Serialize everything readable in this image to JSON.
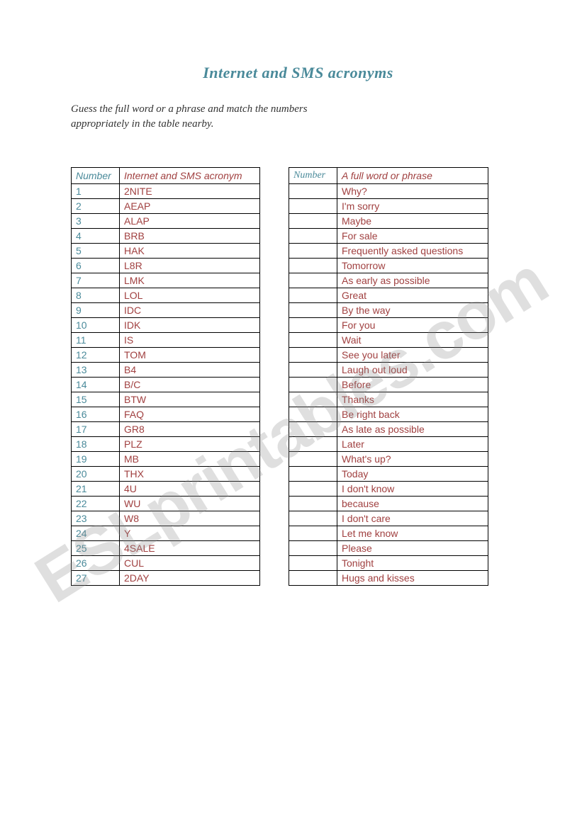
{
  "title": "Internet and SMS acronyms",
  "instructions": "Guess the full word or a phrase and match the numbers appropriately in the table nearby.",
  "watermark": "ESLprintables.com",
  "tableLeft": {
    "header": {
      "col1": "Number",
      "col2": "Internet and SMS acronym"
    },
    "rows": [
      {
        "num": "1",
        "acr": "2NITE"
      },
      {
        "num": "2",
        "acr": "AEAP"
      },
      {
        "num": "3",
        "acr": "ALAP"
      },
      {
        "num": "4",
        "acr": "BRB"
      },
      {
        "num": "5",
        "acr": "HAK"
      },
      {
        "num": "6",
        "acr": "L8R"
      },
      {
        "num": "7",
        "acr": "LMK"
      },
      {
        "num": "8",
        "acr": "LOL"
      },
      {
        "num": "9",
        "acr": "IDC"
      },
      {
        "num": "10",
        "acr": "IDK"
      },
      {
        "num": "11",
        "acr": "IS"
      },
      {
        "num": "12",
        "acr": "TOM"
      },
      {
        "num": "13",
        "acr": "B4"
      },
      {
        "num": "14",
        "acr": "B/C"
      },
      {
        "num": "15",
        "acr": "BTW"
      },
      {
        "num": "16",
        "acr": "FAQ"
      },
      {
        "num": "17",
        "acr": "GR8"
      },
      {
        "num": "18",
        "acr": "PLZ"
      },
      {
        "num": "19",
        "acr": "MB"
      },
      {
        "num": "20",
        "acr": "THX"
      },
      {
        "num": "21",
        "acr": "4U"
      },
      {
        "num": "22",
        "acr": "WU"
      },
      {
        "num": "23",
        "acr": "W8"
      },
      {
        "num": "24",
        "acr": "Y"
      },
      {
        "num": "25",
        "acr": "4SALE"
      },
      {
        "num": "26",
        "acr": "CUL"
      },
      {
        "num": "27",
        "acr": "2DAY"
      }
    ]
  },
  "tableRight": {
    "header": {
      "col1": "Number",
      "col2": "A full  word or phrase"
    },
    "rows": [
      {
        "num": "",
        "phrase": "Why?"
      },
      {
        "num": "",
        "phrase": "I'm sorry"
      },
      {
        "num": "",
        "phrase": "Maybe"
      },
      {
        "num": "",
        "phrase": "For sale"
      },
      {
        "num": "",
        "phrase": "Frequently asked questions"
      },
      {
        "num": "",
        "phrase": "Tomorrow"
      },
      {
        "num": "",
        "phrase": "As early as possible"
      },
      {
        "num": "",
        "phrase": "Great"
      },
      {
        "num": "",
        "phrase": "By the way"
      },
      {
        "num": "",
        "phrase": "For you"
      },
      {
        "num": "",
        "phrase": "Wait"
      },
      {
        "num": "",
        "phrase": "See you later"
      },
      {
        "num": "",
        "phrase": "Laugh out loud"
      },
      {
        "num": "",
        "phrase": "Before"
      },
      {
        "num": "",
        "phrase": "Thanks"
      },
      {
        "num": "",
        "phrase": "Be right back"
      },
      {
        "num": "",
        "phrase": "As late as possible"
      },
      {
        "num": "",
        "phrase": "Later"
      },
      {
        "num": "",
        "phrase": "What's up?"
      },
      {
        "num": "",
        "phrase": "Today"
      },
      {
        "num": "",
        "phrase": " I don't know"
      },
      {
        "num": "",
        "phrase": "because"
      },
      {
        "num": "",
        "phrase": "I don't care"
      },
      {
        "num": "",
        "phrase": "Let me know"
      },
      {
        "num": "",
        "phrase": "Please"
      },
      {
        "num": "",
        "phrase": "Tonight"
      },
      {
        "num": "",
        "phrase": "Hugs and kisses"
      }
    ]
  },
  "colors": {
    "headerText": "#4a8a9a",
    "numberText": "#4a8a9a",
    "dataText": "#a04040",
    "border": "#000000",
    "background": "#ffffff",
    "watermark": "rgba(140,140,140,0.28)"
  }
}
